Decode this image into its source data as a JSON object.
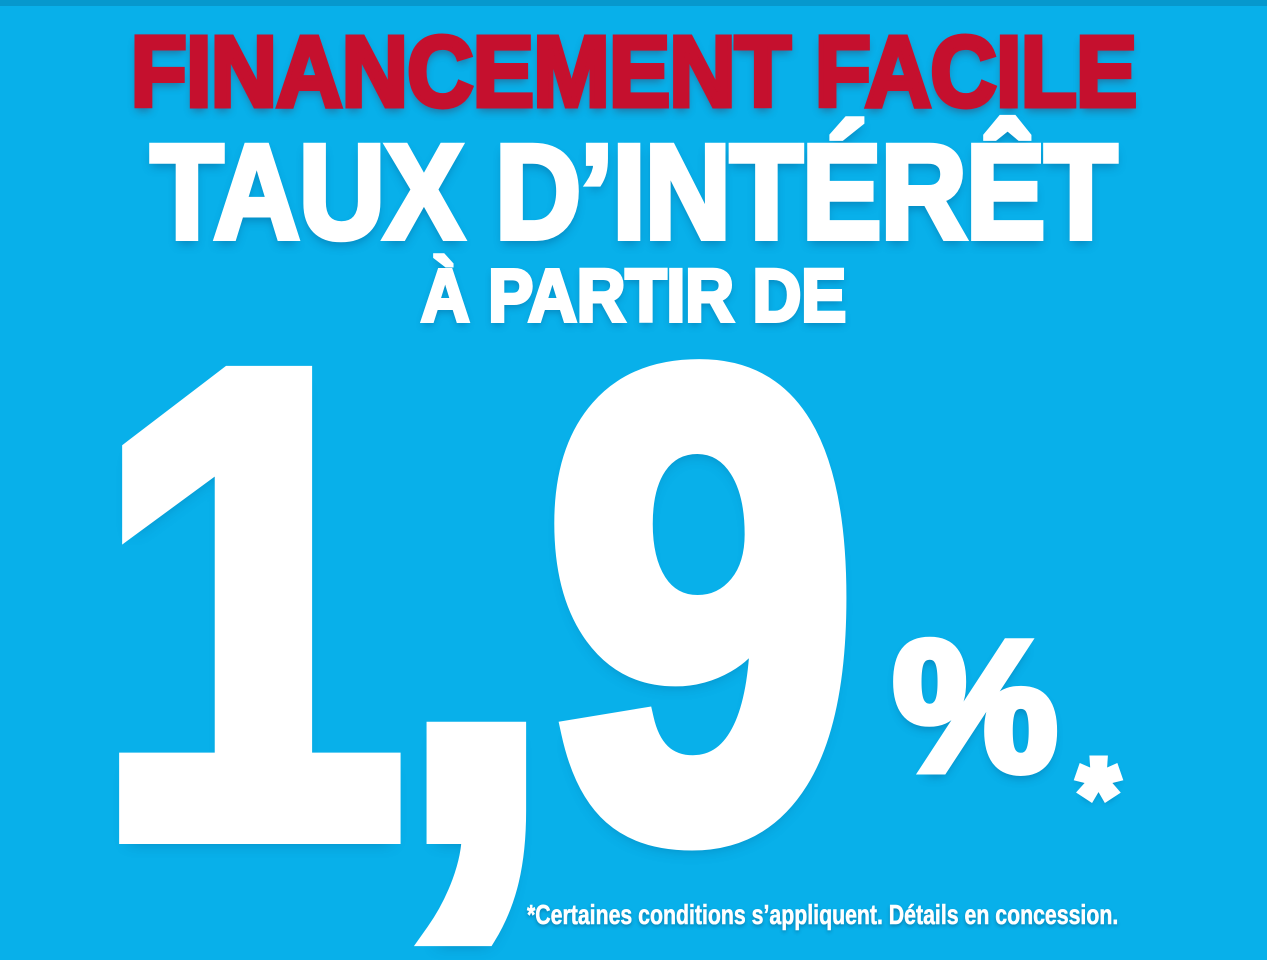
{
  "banner": {
    "headline": "FINANCEMENT FACILE",
    "title": "TAUX D’INTÉRÊT",
    "subtitle": "À PARTIR DE",
    "rate": {
      "value": "1,9",
      "unit": "%",
      "footnote_marker": "*"
    },
    "disclaimer": "*Certaines conditions s’appliquent. Détails en concession."
  },
  "colors": {
    "background": "#08b0ea",
    "top_edge_strip": "#0795c4",
    "headline_red": "#c5102e",
    "text_white": "#ffffff"
  }
}
